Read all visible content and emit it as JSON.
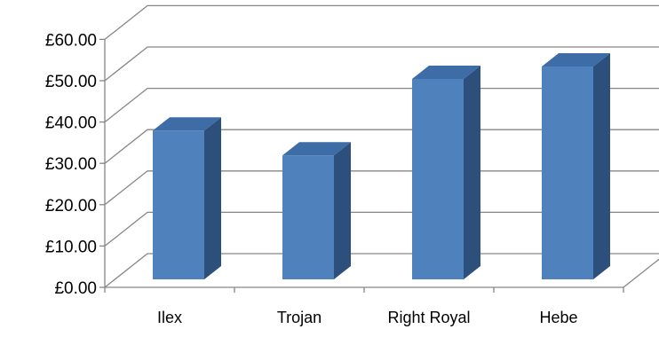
{
  "chart_data": {
    "type": "bar",
    "style": "3d-column",
    "categories": [
      "Ilex",
      "Trojan",
      "Right Royal",
      "Hebe"
    ],
    "values": [
      36,
      30,
      48.5,
      51.5
    ],
    "title": "",
    "xlabel": "",
    "ylabel": "",
    "ylim": [
      0,
      60
    ],
    "yticks": [
      0,
      10,
      20,
      30,
      40,
      50,
      60
    ],
    "ytick_labels": [
      "£0.00",
      "£10.00",
      "£20.00",
      "£30.00",
      "£40.00",
      "£50.00",
      "£60.00"
    ],
    "grid": true,
    "legend": "none",
    "colors": {
      "bar_front": "#4f81bd",
      "bar_side": "#2c4f7c",
      "bar_top": "#3e6ca6",
      "grid": "#868686"
    }
  }
}
